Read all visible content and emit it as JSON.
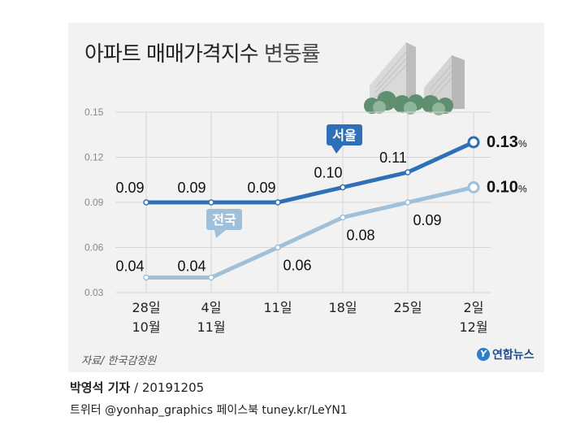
{
  "header": {
    "title_bold": "아파트 매매가격지수",
    "title_rest": "변동률"
  },
  "footer": {
    "source": "자료/ 한국감정원",
    "logo": "연합뉴스",
    "author": "박영석 기자",
    "date": "/ 20191205",
    "social": "트위터 @yonhap_graphics  페이스북 tuney.kr/LeYN1"
  },
  "chart_data": {
    "type": "line",
    "title": "아파트 매매가격지수 변동률",
    "categories": [
      "28일\n10월",
      "4일\n11월",
      "11일",
      "18일",
      "25일",
      "2일\n12월"
    ],
    "ylim": [
      0.03,
      0.15
    ],
    "yticks": [
      "0.15",
      "0.12",
      "0.09",
      "0.06",
      "0.03"
    ],
    "grid": true,
    "series": [
      {
        "name": "서울",
        "values": [
          0.09,
          0.09,
          0.09,
          0.1,
          0.11,
          0.13
        ],
        "labels": [
          "0.09",
          "0.09",
          "0.09",
          "0.10",
          "0.11",
          "0.13"
        ],
        "last_unit": "%",
        "color": "#2e6fb7"
      },
      {
        "name": "전국",
        "values": [
          0.04,
          0.04,
          0.06,
          0.08,
          0.09,
          0.1
        ],
        "labels": [
          "0.04",
          "0.04",
          "0.06",
          "0.08",
          "0.09",
          "0.10"
        ],
        "last_unit": "%",
        "color": "#9fc0d8"
      }
    ]
  }
}
